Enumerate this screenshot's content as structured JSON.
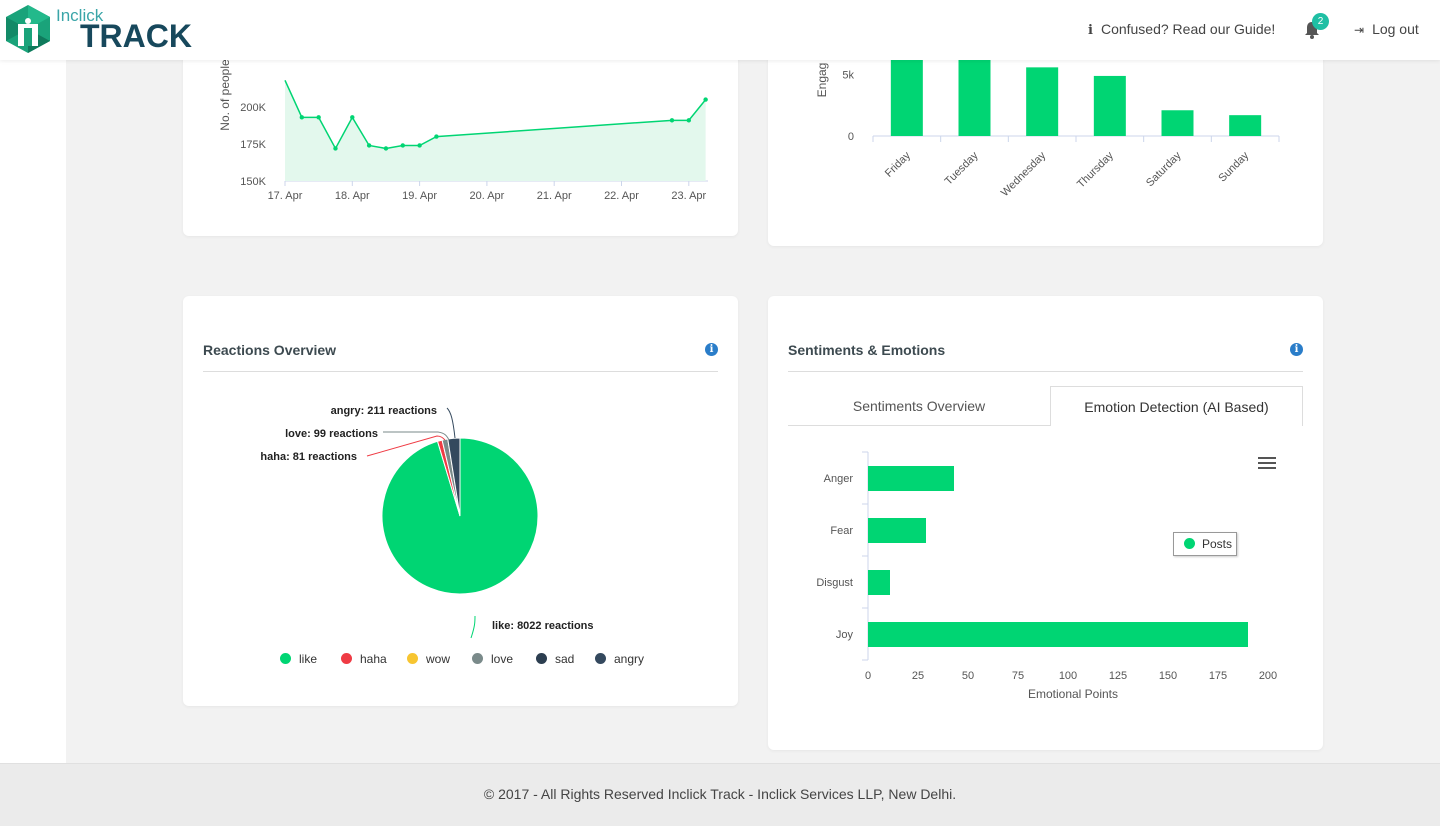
{
  "header": {
    "logo_small": "Inclick",
    "logo_big": "TRACK",
    "guide_label": "Confused? Read our Guide!",
    "notification_count": "2",
    "logout_label": "Log out"
  },
  "reactions": {
    "title": "Reactions Overview",
    "labels": {
      "angry": "angry: 211 reactions",
      "love": "love: 99 reactions",
      "haha": "haha: 81 reactions",
      "like": "like: 8022 reactions"
    },
    "legend": [
      "like",
      "haha",
      "wow",
      "love",
      "sad",
      "angry"
    ]
  },
  "sentiments": {
    "title": "Sentiments & Emotions",
    "tabs": [
      "Sentiments Overview",
      "Emotion Detection (AI Based)"
    ],
    "legend_label": "Posts"
  },
  "footer": {
    "text": "© 2017 - All Rights Reserved Inclick Track - Inclick Services LLP, New Delhi."
  },
  "chart_data": [
    {
      "type": "area",
      "ylabel": "No. of people",
      "x_ticks": [
        "17. Apr",
        "18. Apr",
        "19. Apr",
        "20. Apr",
        "21. Apr",
        "22. Apr",
        "23. Apr"
      ],
      "y_ticks": [
        "150K",
        "175K",
        "200K"
      ],
      "ylim": [
        150000,
        225000
      ],
      "x": [
        "17. Apr 00:00",
        "17. Apr 06:00",
        "17. Apr 12:00",
        "17. Apr 18:00",
        "18. Apr 00:00",
        "18. Apr 06:00",
        "18. Apr 12:00",
        "18. Apr 18:00",
        "19. Apr 00:00",
        "19. Apr 06:00",
        "22. Apr 18:00",
        "23. Apr 00:00",
        "23. Apr 06:00"
      ],
      "values": [
        218000,
        193000,
        193000,
        172000,
        193000,
        174000,
        172000,
        174000,
        174000,
        180000,
        191000,
        191000,
        205000
      ],
      "color": "#00d573"
    },
    {
      "type": "bar",
      "ylabel": "Engag",
      "categories": [
        "Friday",
        "Tuesday",
        "Wednesday",
        "Thursday",
        "Saturday",
        "Sunday"
      ],
      "values": [
        6200,
        6300,
        5600,
        4900,
        2100,
        1700
      ],
      "y_ticks": [
        "0",
        "5k"
      ],
      "ylim": [
        0,
        6200
      ],
      "color": "#00d573"
    },
    {
      "type": "pie",
      "categories": [
        "like",
        "haha",
        "wow",
        "love",
        "sad",
        "angry"
      ],
      "values": [
        8022,
        81,
        0,
        99,
        0,
        211
      ],
      "colors": [
        "#00d573",
        "#ef3b44",
        "#f7c531",
        "#7a8a8a",
        "#2c3e50",
        "#34495e"
      ]
    },
    {
      "type": "bar",
      "orientation": "horizontal",
      "categories": [
        "Anger",
        "Fear",
        "Disgust",
        "Joy"
      ],
      "series": [
        {
          "name": "Posts",
          "values": [
            43,
            29,
            11,
            190
          ]
        }
      ],
      "xlabel": "Emotional Points",
      "x_ticks": [
        "0",
        "25",
        "50",
        "75",
        "100",
        "125",
        "150",
        "175",
        "200"
      ],
      "xlim": [
        0,
        200
      ],
      "color": "#00d573"
    }
  ]
}
